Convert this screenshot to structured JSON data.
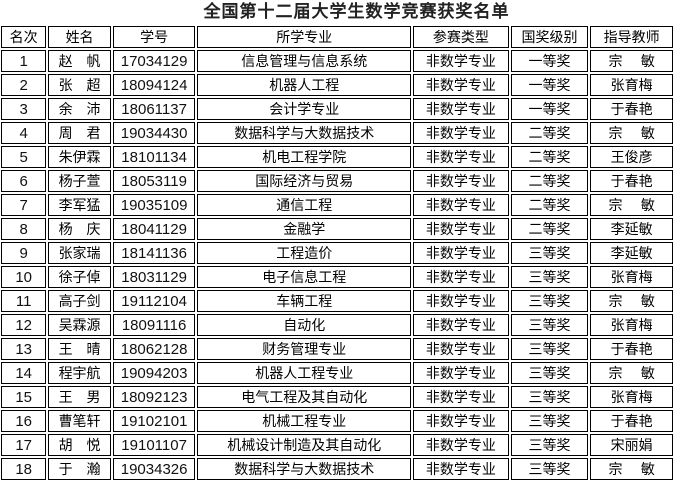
{
  "title": "全国第十二届大学生数学竞赛获奖名单",
  "headers": [
    "名次",
    "姓名",
    "学号",
    "所学专业",
    "参赛类型",
    "国奖级别",
    "指导教师"
  ],
  "rows": [
    [
      "1",
      "赵　帆",
      "17034129",
      "信息管理与信息系统",
      "非数学专业",
      "一等奖",
      "宗　 敏"
    ],
    [
      "2",
      "张　超",
      "18094124",
      "机器人工程",
      "非数学专业",
      "一等奖",
      "张育梅"
    ],
    [
      "3",
      "余　沛",
      "18061137",
      "会计学专业",
      "非数学专业",
      "一等奖",
      "于春艳"
    ],
    [
      "4",
      "周　君",
      "19034430",
      "数据科学与大数据技术",
      "非数学专业",
      "二等奖",
      "宗　 敏"
    ],
    [
      "5",
      "朱伊霖",
      "18101134",
      "机电工程学院",
      "非数学专业",
      "二等奖",
      "王俊彦"
    ],
    [
      "6",
      "杨子萱",
      "18053119",
      "国际经济与贸易",
      "非数学专业",
      "二等奖",
      "于春艳"
    ],
    [
      "7",
      "李军猛",
      "19035109",
      "通信工程",
      "非数学专业",
      "二等奖",
      "宗　 敏"
    ],
    [
      "8",
      "杨　庆",
      "18041129",
      "金融学",
      "非数学专业",
      "二等奖",
      "李延敏"
    ],
    [
      "9",
      "张家瑞",
      "18141136",
      "工程造价",
      "非数学专业",
      "三等奖",
      "李延敏"
    ],
    [
      "10",
      "徐子倬",
      "18031129",
      "电子信息工程",
      "非数学专业",
      "三等奖",
      "张育梅"
    ],
    [
      "11",
      "高子剑",
      "19112104",
      "车辆工程",
      "非数学专业",
      "三等奖",
      "宗　 敏"
    ],
    [
      "12",
      "吴霖源",
      "18091116",
      "自动化",
      "非数学专业",
      "三等奖",
      "张育梅"
    ],
    [
      "13",
      "王　晴",
      "18062128",
      "财务管理专业",
      "非数学专业",
      "三等奖",
      "于春艳"
    ],
    [
      "14",
      "程宇航",
      "19094203",
      "机器人工程专业",
      "非数学专业",
      "三等奖",
      "宗　 敏"
    ],
    [
      "15",
      "王　男",
      "18092123",
      "电气工程及其自动化",
      "非数学专业",
      "三等奖",
      "张育梅"
    ],
    [
      "16",
      "曹笔轩",
      "19102101",
      "机械工程专业",
      "非数学专业",
      "三等奖",
      "于春艳"
    ],
    [
      "17",
      "胡　悦",
      "19101107",
      "机械设计制造及其自动化",
      "非数学专业",
      "三等奖",
      "宋丽娟"
    ],
    [
      "18",
      "于　瀚",
      "19034326",
      "数据科学与大数据技术",
      "非数学专业",
      "三等奖",
      "宗　 敏"
    ]
  ]
}
